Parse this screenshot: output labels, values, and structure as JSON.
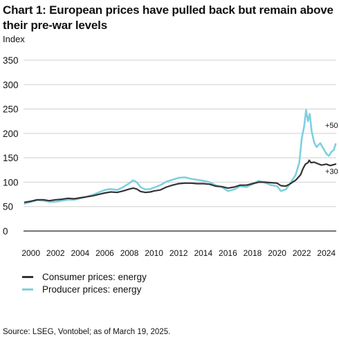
{
  "chart_data": {
    "type": "line",
    "title": "Chart 1: European prices have pulled back but remain above their pre-war levels",
    "ylabel": "Index",
    "ylim": [
      0,
      350
    ],
    "yticks": [
      0,
      50,
      100,
      150,
      200,
      250,
      300,
      350
    ],
    "xlim": [
      1999.4,
      2024.8
    ],
    "xticks": [
      2000,
      2002,
      2004,
      2006,
      2008,
      2010,
      2012,
      2014,
      2016,
      2018,
      2020,
      2022,
      2024
    ],
    "grid": "horizontal",
    "legend_position": "bottom-left",
    "series": [
      {
        "name": "Consumer prices: energy",
        "color": "#333333",
        "points": [
          [
            1999.5,
            59
          ],
          [
            2000.0,
            61
          ],
          [
            2000.5,
            64
          ],
          [
            2001.0,
            64
          ],
          [
            2001.5,
            62
          ],
          [
            2002.0,
            64
          ],
          [
            2002.5,
            65
          ],
          [
            2003.0,
            67
          ],
          [
            2003.5,
            66
          ],
          [
            2004.0,
            68
          ],
          [
            2004.5,
            70
          ],
          [
            2005.0,
            72
          ],
          [
            2005.5,
            75
          ],
          [
            2006.0,
            78
          ],
          [
            2006.5,
            80
          ],
          [
            2007.0,
            79
          ],
          [
            2007.5,
            82
          ],
          [
            2008.0,
            86
          ],
          [
            2008.3,
            88
          ],
          [
            2008.6,
            86
          ],
          [
            2008.9,
            81
          ],
          [
            2009.3,
            79
          ],
          [
            2009.7,
            80
          ],
          [
            2010.0,
            82
          ],
          [
            2010.5,
            84
          ],
          [
            2011.0,
            90
          ],
          [
            2011.5,
            94
          ],
          [
            2012.0,
            97
          ],
          [
            2012.5,
            98
          ],
          [
            2013.0,
            98
          ],
          [
            2013.5,
            97
          ],
          [
            2014.0,
            97
          ],
          [
            2014.5,
            96
          ],
          [
            2015.0,
            92
          ],
          [
            2015.5,
            91
          ],
          [
            2016.0,
            88
          ],
          [
            2016.5,
            90
          ],
          [
            2017.0,
            94
          ],
          [
            2017.5,
            94
          ],
          [
            2018.0,
            97
          ],
          [
            2018.5,
            100
          ],
          [
            2019.0,
            100
          ],
          [
            2019.5,
            99
          ],
          [
            2020.0,
            98
          ],
          [
            2020.3,
            93
          ],
          [
            2020.7,
            92
          ],
          [
            2021.0,
            96
          ],
          [
            2021.5,
            104
          ],
          [
            2021.9,
            115
          ],
          [
            2022.1,
            128
          ],
          [
            2022.3,
            137
          ],
          [
            2022.5,
            140
          ],
          [
            2022.6,
            145
          ],
          [
            2022.75,
            140
          ],
          [
            2023.0,
            141
          ],
          [
            2023.3,
            138
          ],
          [
            2023.6,
            135
          ],
          [
            2024.0,
            137
          ],
          [
            2024.3,
            134
          ],
          [
            2024.6,
            136
          ],
          [
            2024.75,
            137
          ]
        ]
      },
      {
        "name": "Producer prices: energy",
        "color": "#7fcfe0",
        "points": [
          [
            1999.5,
            56
          ],
          [
            2000.0,
            60
          ],
          [
            2000.5,
            63
          ],
          [
            2001.0,
            62
          ],
          [
            2001.5,
            60
          ],
          [
            2002.0,
            60
          ],
          [
            2002.5,
            62
          ],
          [
            2003.0,
            64
          ],
          [
            2003.5,
            64
          ],
          [
            2004.0,
            67
          ],
          [
            2004.5,
            70
          ],
          [
            2005.0,
            74
          ],
          [
            2005.5,
            79
          ],
          [
            2006.0,
            84
          ],
          [
            2006.5,
            86
          ],
          [
            2007.0,
            84
          ],
          [
            2007.5,
            90
          ],
          [
            2008.0,
            98
          ],
          [
            2008.3,
            104
          ],
          [
            2008.6,
            100
          ],
          [
            2008.9,
            90
          ],
          [
            2009.3,
            85
          ],
          [
            2009.7,
            86
          ],
          [
            2010.0,
            89
          ],
          [
            2010.5,
            94
          ],
          [
            2011.0,
            101
          ],
          [
            2011.5,
            105
          ],
          [
            2012.0,
            109
          ],
          [
            2012.5,
            110
          ],
          [
            2013.0,
            107
          ],
          [
            2013.5,
            105
          ],
          [
            2014.0,
            103
          ],
          [
            2014.5,
            100
          ],
          [
            2015.0,
            94
          ],
          [
            2015.5,
            90
          ],
          [
            2016.0,
            82
          ],
          [
            2016.5,
            85
          ],
          [
            2017.0,
            92
          ],
          [
            2017.5,
            90
          ],
          [
            2018.0,
            96
          ],
          [
            2018.5,
            103
          ],
          [
            2019.0,
            99
          ],
          [
            2019.5,
            94
          ],
          [
            2020.0,
            92
          ],
          [
            2020.3,
            82
          ],
          [
            2020.7,
            85
          ],
          [
            2021.0,
            95
          ],
          [
            2021.5,
            115
          ],
          [
            2021.8,
            140
          ],
          [
            2022.0,
            190
          ],
          [
            2022.2,
            215
          ],
          [
            2022.35,
            248
          ],
          [
            2022.5,
            225
          ],
          [
            2022.65,
            240
          ],
          [
            2022.8,
            205
          ],
          [
            2023.0,
            182
          ],
          [
            2023.2,
            172
          ],
          [
            2023.5,
            180
          ],
          [
            2023.8,
            167
          ],
          [
            2024.0,
            158
          ],
          [
            2024.2,
            154
          ],
          [
            2024.4,
            162
          ],
          [
            2024.6,
            166
          ],
          [
            2024.75,
            178
          ]
        ]
      }
    ],
    "annotations": [
      {
        "text": "+50 %",
        "x": 2023.9,
        "y": 211
      },
      {
        "text": "+30 %",
        "x": 2023.9,
        "y": 117
      }
    ]
  },
  "footer": {
    "source": "Source: LSEG, Vontobel; as of March 19, 2025."
  }
}
